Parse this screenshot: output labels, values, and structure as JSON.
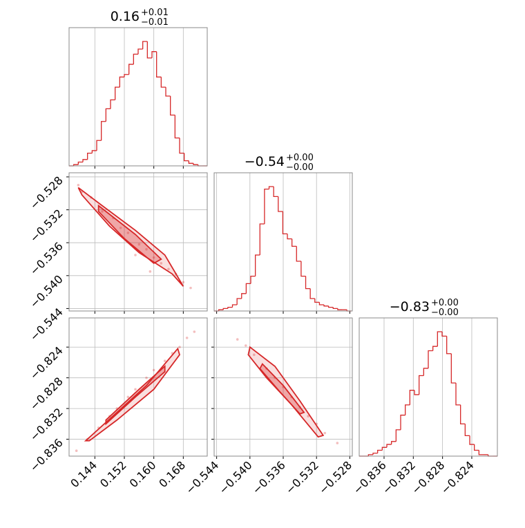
{
  "chart_data": [
    {
      "type": "histogram",
      "title": {
        "value": "0.16",
        "upper": "+0.01",
        "lower": "−0.01"
      },
      "color": "#d62728",
      "grid": true,
      "bins": [
        0.137,
        0.13825,
        0.1395,
        0.14075,
        0.142,
        0.14325,
        0.1445,
        0.14575,
        0.147,
        0.14825,
        0.1495,
        0.15075,
        0.152,
        0.15325,
        0.1545,
        0.15575,
        0.157,
        0.15825,
        0.1595,
        0.16075,
        0.162,
        0.16325,
        0.1645,
        0.16575,
        0.167,
        0.16825,
        0.1695,
        0.17075,
        0.172,
        0.17325,
        0.1745
      ],
      "counts": [
        0,
        1,
        3,
        5,
        10,
        12,
        20,
        35,
        45,
        52,
        62,
        70,
        72,
        80,
        88,
        92,
        98,
        85,
        90,
        70,
        62,
        55,
        40,
        22,
        10,
        4,
        2,
        1,
        0,
        0
      ],
      "xlim": [
        0.137,
        0.1745
      ],
      "xticks": [
        0.144,
        0.152,
        0.16,
        0.168
      ]
    },
    {
      "type": "scatter",
      "color": "#d62728",
      "grid": true,
      "points": {
        "x": [
          0.1405,
          0.143,
          0.146,
          0.149,
          0.151,
          0.153,
          0.156,
          0.158,
          0.16,
          0.162,
          0.164,
          0.166,
          0.168,
          0.17,
          0.1395,
          0.155,
          0.159
        ],
        "y": [
          -0.5298,
          -0.5305,
          -0.5322,
          -0.533,
          -0.5342,
          -0.5348,
          -0.5362,
          -0.5368,
          -0.5378,
          -0.5385,
          -0.5392,
          -0.5398,
          -0.5408,
          -0.5415,
          -0.529,
          -0.5375,
          -0.5395
        ]
      },
      "contours": [
        {
          "x": [
            0.1395,
            0.146,
            0.155,
            0.163,
            0.168,
            0.165,
            0.156,
            0.148,
            0.1405
          ],
          "y": [
            -0.5293,
            -0.5315,
            -0.5345,
            -0.5375,
            -0.5413,
            -0.5398,
            -0.5372,
            -0.534,
            -0.5302
          ]
        },
        {
          "x": [
            0.145,
            0.155,
            0.162,
            0.16,
            0.152,
            0.145
          ],
          "y": [
            -0.5315,
            -0.535,
            -0.538,
            -0.5385,
            -0.5355,
            -0.5322
          ]
        }
      ],
      "xlim": [
        0.137,
        0.1745
      ],
      "ylim": [
        -0.5443,
        -0.5275
      ],
      "xticks": [
        0.144,
        0.152,
        0.16,
        0.168
      ],
      "yticks": [
        {
          "value": -0.528,
          "label": "−0.528"
        },
        {
          "value": -0.532,
          "label": "−0.532"
        },
        {
          "value": -0.536,
          "label": "−0.536"
        },
        {
          "value": -0.54,
          "label": "−0.540"
        },
        {
          "value": -0.544,
          "label": "−0.544"
        }
      ]
    },
    {
      "type": "histogram",
      "title": {
        "value": "−0.54",
        "upper": "+0.00",
        "lower": "−0.00"
      },
      "color": "#d62728",
      "grid": true,
      "bins": [
        -0.5443,
        -0.54375,
        -0.5432,
        -0.54265,
        -0.5421,
        -0.54155,
        -0.541,
        -0.54045,
        -0.5399,
        -0.53935,
        -0.5388,
        -0.53825,
        -0.5377,
        -0.53715,
        -0.5366,
        -0.53605,
        -0.5355,
        -0.53495,
        -0.5344,
        -0.53385,
        -0.5333,
        -0.53275,
        -0.5322,
        -0.53165,
        -0.5311,
        -0.53055,
        -0.53,
        -0.52945,
        -0.5289,
        -0.52835,
        -0.5278
      ],
      "counts": [
        0,
        1,
        2,
        3,
        5,
        10,
        14,
        22,
        28,
        45,
        70,
        98,
        100,
        92,
        80,
        62,
        58,
        52,
        40,
        28,
        18,
        10,
        7,
        5,
        4,
        3,
        2,
        1,
        1,
        0
      ],
      "xlim": [
        -0.5443,
        -0.5277
      ],
      "xticks": [
        -0.544,
        -0.54,
        -0.536,
        -0.532,
        -0.528
      ]
    },
    {
      "type": "scatter",
      "color": "#d62728",
      "grid": true,
      "points": {
        "x": [
          0.139,
          0.142,
          0.145,
          0.148,
          0.15,
          0.153,
          0.155,
          0.158,
          0.16,
          0.163,
          0.165,
          0.167,
          0.169,
          0.171
        ],
        "y": [
          -0.8375,
          -0.836,
          -0.8345,
          -0.833,
          -0.832,
          -0.8305,
          -0.8295,
          -0.828,
          -0.827,
          -0.8258,
          -0.8248,
          -0.824,
          -0.8228,
          -0.822
        ]
      },
      "contours": [
        {
          "x": [
            0.1415,
            0.15,
            0.158,
            0.1665,
            0.167,
            0.16,
            0.15,
            0.1425
          ],
          "y": [
            -0.8362,
            -0.8325,
            -0.829,
            -0.8242,
            -0.825,
            -0.8295,
            -0.8335,
            -0.8362
          ]
        },
        {
          "x": [
            0.147,
            0.156,
            0.163,
            0.163,
            0.155,
            0.147
          ],
          "y": [
            -0.8335,
            -0.8295,
            -0.8265,
            -0.8272,
            -0.8305,
            -0.834
          ]
        }
      ],
      "xlim": [
        0.137,
        0.1745
      ],
      "ylim": [
        -0.8382,
        -0.8202
      ],
      "xticks": [
        {
          "value": 0.144,
          "label": "0.144"
        },
        {
          "value": 0.152,
          "label": "0.152"
        },
        {
          "value": 0.16,
          "label": "0.160"
        },
        {
          "value": 0.168,
          "label": "0.168"
        }
      ],
      "yticks": [
        {
          "value": -0.824,
          "label": "−0.824"
        },
        {
          "value": -0.828,
          "label": "−0.828"
        },
        {
          "value": -0.832,
          "label": "−0.832"
        },
        {
          "value": -0.836,
          "label": "−0.836"
        }
      ]
    },
    {
      "type": "scatter",
      "color": "#d62728",
      "grid": true,
      "points": {
        "x": [
          -0.5415,
          -0.5405,
          -0.5395,
          -0.538,
          -0.537,
          -0.536,
          -0.535,
          -0.534,
          -0.533,
          -0.532,
          -0.531,
          -0.5295
        ],
        "y": [
          -0.823,
          -0.8238,
          -0.825,
          -0.8268,
          -0.828,
          -0.8292,
          -0.8305,
          -0.8318,
          -0.833,
          -0.834,
          -0.8352,
          -0.8365
        ]
      },
      "contours": [
        {
          "x": [
            -0.54,
            -0.537,
            -0.534,
            -0.5312,
            -0.5318,
            -0.535,
            -0.538,
            -0.5402
          ],
          "y": [
            -0.824,
            -0.8265,
            -0.831,
            -0.8355,
            -0.8357,
            -0.8315,
            -0.828,
            -0.825
          ]
        },
        {
          "x": [
            -0.5385,
            -0.536,
            -0.5335,
            -0.534,
            -0.5365,
            -0.5388
          ],
          "y": [
            -0.8262,
            -0.829,
            -0.8325,
            -0.8327,
            -0.8297,
            -0.8268
          ]
        }
      ],
      "xlim": [
        -0.5443,
        -0.5277
      ],
      "ylim": [
        -0.8382,
        -0.8202
      ],
      "xticks": [
        {
          "value": -0.544,
          "label": "−0.544"
        },
        {
          "value": -0.54,
          "label": "−0.540"
        },
        {
          "value": -0.536,
          "label": "−0.536"
        },
        {
          "value": -0.532,
          "label": "−0.532"
        },
        {
          "value": -0.528,
          "label": "−0.528"
        }
      ],
      "yticks": [
        -0.824,
        -0.828,
        -0.832,
        -0.836
      ]
    },
    {
      "type": "histogram",
      "title": {
        "value": "−0.83",
        "upper": "+0.00",
        "lower": "−0.00"
      },
      "color": "#d62728",
      "grid": true,
      "bins": [
        -0.8394,
        -0.83877,
        -0.83814,
        -0.83751,
        -0.83688,
        -0.83625,
        -0.83562,
        -0.83499,
        -0.83436,
        -0.83373,
        -0.8331,
        -0.83247,
        -0.83184,
        -0.83121,
        -0.83058,
        -0.82995,
        -0.82932,
        -0.82869,
        -0.82806,
        -0.82743,
        -0.8268,
        -0.82617,
        -0.82554,
        -0.82491,
        -0.82428,
        -0.82365,
        -0.82302,
        -0.82239,
        -0.82176,
        -0.82113,
        -0.8205
      ],
      "counts": [
        0,
        0,
        1,
        2,
        4,
        6,
        8,
        10,
        18,
        28,
        35,
        45,
        42,
        55,
        60,
        72,
        75,
        85,
        82,
        70,
        50,
        35,
        22,
        14,
        8,
        4,
        1,
        1,
        0,
        0
      ],
      "xlim": [
        -0.8394,
        -0.8205
      ],
      "xticks": [
        {
          "value": -0.836,
          "label": "−0.836"
        },
        {
          "value": -0.832,
          "label": "−0.832"
        },
        {
          "value": -0.828,
          "label": "−0.828"
        },
        {
          "value": -0.824,
          "label": "−0.824"
        }
      ]
    }
  ]
}
